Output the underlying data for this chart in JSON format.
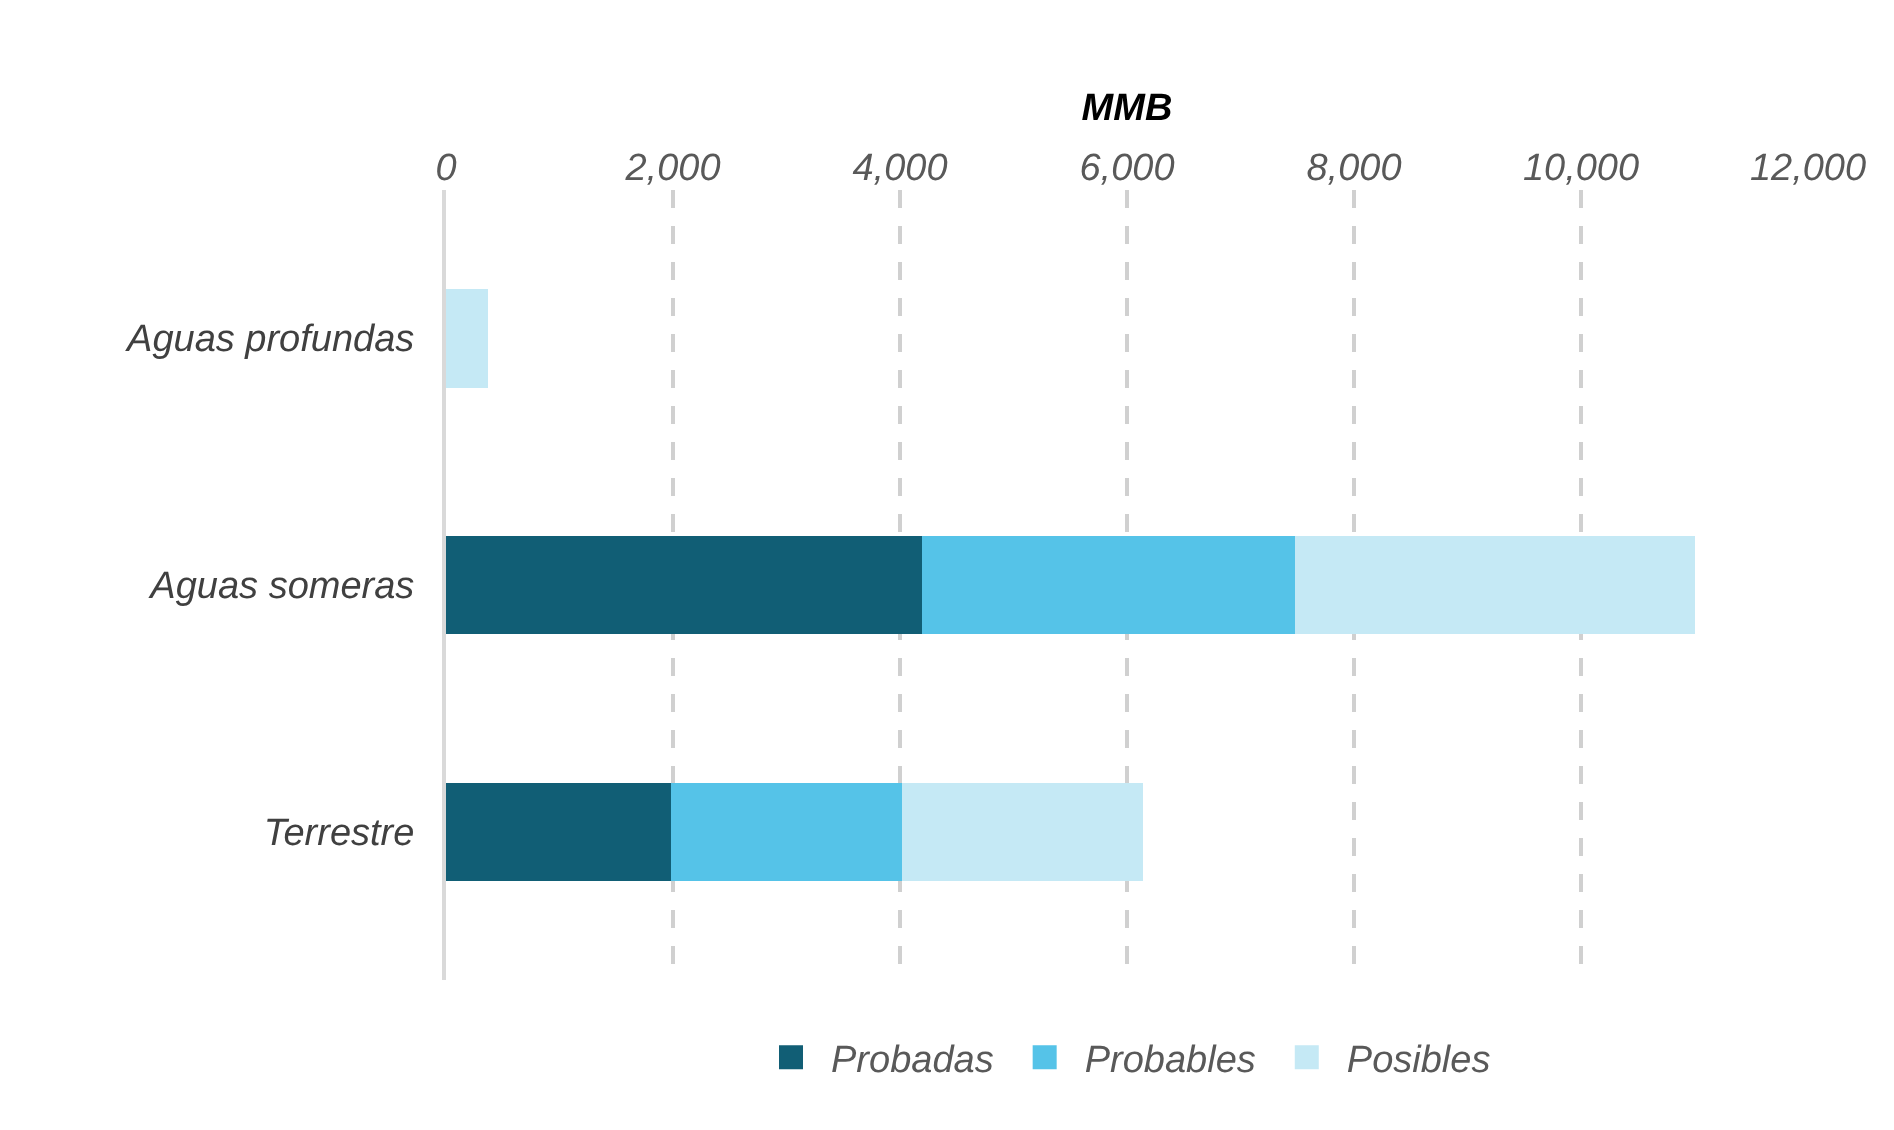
{
  "chart_data": {
    "type": "bar",
    "orientation": "horizontal",
    "stacked": true,
    "xlabel": "MMB",
    "categories": [
      "Aguas profundas",
      "Aguas someras",
      "Terrestre"
    ],
    "series": [
      {
        "name": "Probadas",
        "color": "#115e75",
        "values": [
          0,
          4190,
          1980
        ]
      },
      {
        "name": "Probables",
        "color": "#55c3e8",
        "values": [
          0,
          3290,
          2040
        ]
      },
      {
        "name": "Posibles",
        "color": "#c5e9f5",
        "values": [
          370,
          3520,
          2120
        ]
      }
    ],
    "xlim": [
      0,
      12000
    ],
    "xticks": [
      {
        "value": 0,
        "label": "0"
      },
      {
        "value": 2000,
        "label": "2,000"
      },
      {
        "value": 4000,
        "label": "4,000"
      },
      {
        "value": 6000,
        "label": "6,000"
      },
      {
        "value": 8000,
        "label": "8,000"
      },
      {
        "value": 10000,
        "label": "10,000"
      },
      {
        "value": 12000,
        "label": "12,000"
      }
    ],
    "grid": "x",
    "line_style": "dashed",
    "legend": "bottom"
  }
}
